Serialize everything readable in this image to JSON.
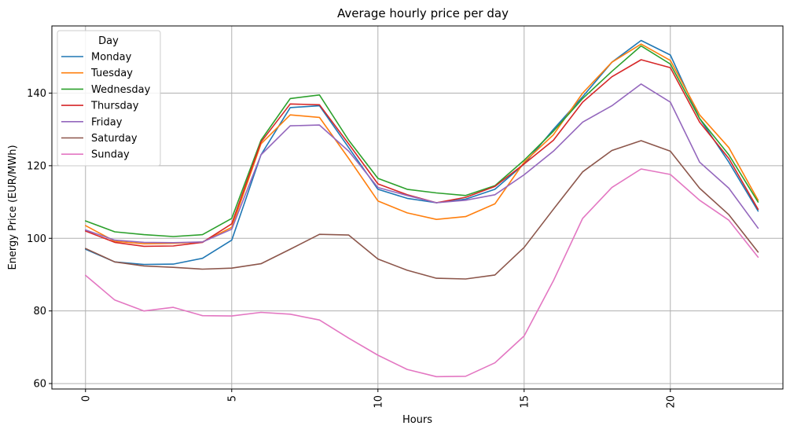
{
  "chart_data": {
    "type": "line",
    "title": "Average hourly price per day",
    "xlabel": "Hours",
    "ylabel": "Energy Price (EUR/MWh)",
    "xlim": [
      -1.15,
      23.85
    ],
    "ylim": [
      58.5,
      158.5
    ],
    "xticks": [
      0,
      5,
      10,
      15,
      20
    ],
    "yticks": [
      60,
      80,
      100,
      120,
      140
    ],
    "x_tick_rotation": 90,
    "grid": true,
    "legend": {
      "title": "Day",
      "placement": "upper-left"
    },
    "x": [
      0,
      1,
      2,
      3,
      4,
      5,
      6,
      7,
      8,
      9,
      10,
      11,
      12,
      13,
      14,
      15,
      16,
      17,
      18,
      19,
      20,
      21,
      22,
      23
    ],
    "series": [
      {
        "name": "Monday",
        "color": "#1f77b4",
        "values": [
          97,
          93.5,
          92.8,
          92.9,
          94.5,
          99.5,
          123,
          136,
          136.5,
          125,
          113.5,
          111,
          109.8,
          110.8,
          113.5,
          120.5,
          130,
          139,
          148.5,
          154.5,
          150.5,
          133,
          121,
          107.5
        ]
      },
      {
        "name": "Tuesday",
        "color": "#ff7f0e",
        "values": [
          103.5,
          99.2,
          98.5,
          98.6,
          99,
          103,
          126,
          134,
          133.3,
          122,
          110.3,
          107,
          105.2,
          106,
          109.5,
          121,
          128.5,
          140,
          148.5,
          153.5,
          149,
          134,
          125,
          110.5
        ]
      },
      {
        "name": "Wednesday",
        "color": "#2ca02c",
        "values": [
          104.8,
          101.8,
          101,
          100.5,
          101,
          105.5,
          127,
          138.5,
          139.5,
          127,
          116.5,
          113.5,
          112.5,
          111.8,
          114.5,
          121.5,
          129.5,
          138.5,
          146,
          153,
          148,
          133,
          123,
          110
        ]
      },
      {
        "name": "Thursday",
        "color": "#d62728",
        "values": [
          102,
          98.9,
          97.8,
          97.9,
          98.9,
          104,
          126.5,
          137,
          136.8,
          126,
          115,
          112,
          109.8,
          111.3,
          114.3,
          120.5,
          127,
          137.5,
          144.5,
          149.2,
          147,
          132,
          122,
          108
        ]
      },
      {
        "name": "Friday",
        "color": "#9467bd",
        "values": [
          102.3,
          99.5,
          98.9,
          98.8,
          99,
          102.5,
          123,
          131,
          131.2,
          124,
          114,
          111.8,
          109.8,
          110.5,
          112,
          117.5,
          124,
          132,
          136.5,
          142.5,
          137.5,
          121,
          113.8,
          102.8
        ]
      },
      {
        "name": "Saturday",
        "color": "#8c564b",
        "values": [
          97.2,
          93.5,
          92.4,
          92,
          91.5,
          91.8,
          93,
          97,
          101.1,
          100.9,
          94.3,
          91.2,
          89,
          88.8,
          89.9,
          97.5,
          108,
          118.3,
          124.2,
          126.9,
          124,
          113.8,
          106.5,
          96.2
        ]
      },
      {
        "name": "Sunday",
        "color": "#e377c2",
        "values": [
          89.8,
          83,
          80,
          81,
          78.7,
          78.6,
          79.6,
          79.1,
          77.5,
          72.5,
          67.8,
          63.9,
          61.9,
          62,
          65.7,
          73.1,
          88.3,
          105.5,
          114,
          119.1,
          117.6,
          110.5,
          105,
          94.8
        ]
      }
    ]
  }
}
